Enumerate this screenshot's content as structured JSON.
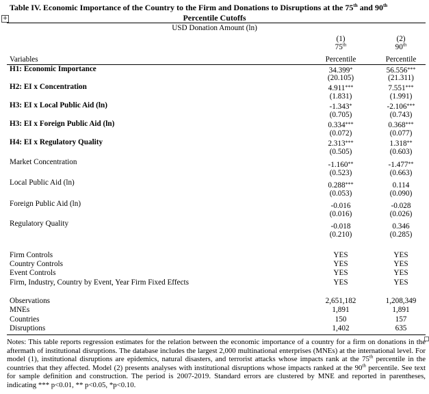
{
  "title": {
    "line1": "Table IV. Economic Importance of the Country to the Firm and Donations to Disruptions at the 75",
    "sup1": "th",
    "mid": " and 90",
    "sup2": "th",
    "line2": "Percentile Cutoffs"
  },
  "dependent_var": "USD Donation Amount (ln)",
  "columns": [
    {
      "number": "(1)",
      "pct": "75",
      "sup": "th",
      "label": "Percentile"
    },
    {
      "number": "(2)",
      "pct": "90",
      "sup": "th",
      "label": "Percentile"
    }
  ],
  "variables_header": "Variables",
  "rows": [
    {
      "label": "H1: Economic Importance",
      "coef": [
        {
          "v": "34.399",
          "s": "*"
        },
        {
          "v": "56.556",
          "s": "***"
        }
      ],
      "se": [
        "(20.105)",
        "(21.311)"
      ]
    },
    {
      "label": "H2: EI x Concentration",
      "coef": [
        {
          "v": "4.911",
          "s": "***"
        },
        {
          "v": "7.551",
          "s": "***"
        }
      ],
      "se": [
        "(1.831)",
        "(1.991)"
      ]
    },
    {
      "label": "H3: EI x Local Public Aid (ln)",
      "coef": [
        {
          "v": "-1.343",
          "s": "*"
        },
        {
          "v": "-2.106",
          "s": "***"
        }
      ],
      "se": [
        "(0.705)",
        "(0.743)"
      ]
    },
    {
      "label": "H3: EI x Foreign Public Aid (ln)",
      "coef": [
        {
          "v": "0.334",
          "s": "***"
        },
        {
          "v": "0.368",
          "s": "***"
        }
      ],
      "se": [
        "(0.072)",
        "(0.077)"
      ]
    },
    {
      "label": "H4: EI x Regulatory Quality",
      "coef": [
        {
          "v": "2.313",
          "s": "***"
        },
        {
          "v": "1.318",
          "s": "**"
        }
      ],
      "se": [
        "(0.505)",
        "(0.603)"
      ]
    },
    {
      "label": "Market Concentration",
      "coef": [
        {
          "v": "-1.160",
          "s": "**"
        },
        {
          "v": "-1.477",
          "s": "**"
        }
      ],
      "se": [
        "(0.523)",
        "(0.663)"
      ]
    },
    {
      "label": "Local Public Aid (ln)",
      "coef": [
        {
          "v": "0.288",
          "s": "***"
        },
        {
          "v": "0.114",
          "s": ""
        }
      ],
      "se": [
        "(0.053)",
        "(0.090)"
      ]
    },
    {
      "label": "Foreign Public Aid (ln)",
      "coef": [
        {
          "v": "-0.016",
          "s": ""
        },
        {
          "v": "-0.028",
          "s": ""
        }
      ],
      "se": [
        "(0.016)",
        "(0.026)"
      ]
    },
    {
      "label": "Regulatory Quality",
      "coef": [
        {
          "v": "-0.018",
          "s": ""
        },
        {
          "v": "0.346",
          "s": ""
        }
      ],
      "se": [
        "(0.210)",
        "(0.285)"
      ]
    }
  ],
  "controls": [
    {
      "label": "Firm Controls",
      "values": [
        "YES",
        "YES"
      ]
    },
    {
      "label": "Country Controls",
      "values": [
        "YES",
        "YES"
      ]
    },
    {
      "label": "Event Controls",
      "values": [
        "YES",
        "YES"
      ]
    },
    {
      "label": "Firm, Industry, Country by Event, Year Firm Fixed Effects",
      "values": [
        "YES",
        "YES"
      ]
    }
  ],
  "stats": [
    {
      "label": "Observations",
      "values": [
        "2,651,182",
        "1,208,349"
      ]
    },
    {
      "label": "MNEs",
      "values": [
        "1,891",
        "1,891"
      ]
    },
    {
      "label": "Countries",
      "values": [
        "150",
        "157"
      ]
    },
    {
      "label": "Disruptions",
      "values": [
        "1,402",
        "635"
      ]
    }
  ],
  "notes": {
    "part1": "Notes: This table reports regression estimates for the relation between the economic importance of a country for a firm on donations in the aftermath of institutional disruptions. The database includes the largest 2,000 multinational enterprises (MNEs) at the international level. For model (1), institutional disruptions are epidemics, natural disasters, and terrorist attacks whose impacts rank at the 75",
    "sup1": "th",
    "part2": " percentile in the countries that they affected. Model (2) presents analyses with institutional disruptions whose impacts ranked at the 90",
    "sup2": "th",
    "part3": " percentile. See text for sample definition and construction. The period is 2007-2019. Standard errors are clustered by MNE and reported in parentheses, indicating *** p<0.01, ** p<0.05, *p<0.10."
  }
}
